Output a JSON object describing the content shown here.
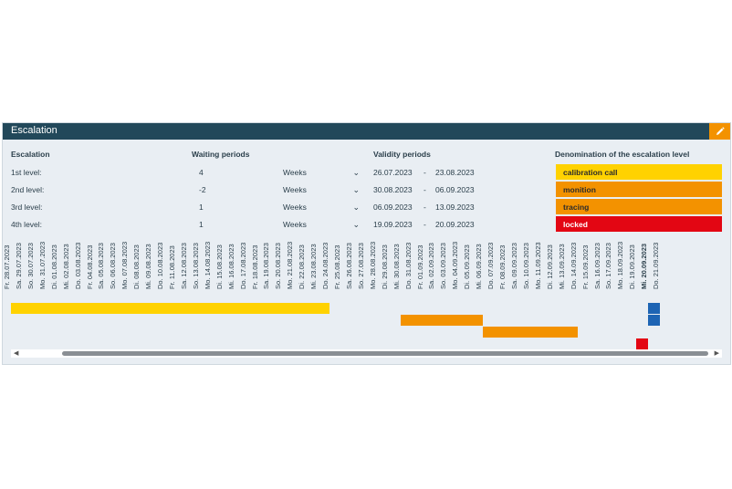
{
  "panel": {
    "title": "Escalation",
    "edit_icon": "pencil-icon"
  },
  "columns": {
    "escalation": "Escalation",
    "waiting": "Waiting periods",
    "validity": "Validity periods",
    "denomination": "Denomination of the escalation level"
  },
  "levels": [
    {
      "label": "1st level:",
      "waiting": "4",
      "unit": "Weeks",
      "from": "26.07.2023",
      "sep": "-",
      "to": "23.08.2023",
      "name": "calibration call",
      "color": "#ffd200",
      "text_color": "#2b2b2b"
    },
    {
      "label": "2nd level:",
      "waiting": "-2",
      "unit": "Weeks",
      "from": "30.08.2023",
      "sep": "-",
      "to": "06.09.2023",
      "name": "monition",
      "color": "#f39200",
      "text_color": "#2b2b2b"
    },
    {
      "label": "3rd level:",
      "waiting": "1",
      "unit": "Weeks",
      "from": "06.09.2023",
      "sep": "-",
      "to": "13.09.2023",
      "name": "tracing",
      "color": "#f39200",
      "text_color": "#2b2b2b"
    },
    {
      "label": "4th level:",
      "waiting": "1",
      "unit": "Weeks",
      "from": "19.09.2023",
      "sep": "-",
      "to": "20.09.2023",
      "name": "locked",
      "color": "#e30613",
      "text_color": "#ffffff"
    }
  ],
  "timeline": {
    "dates": [
      "Fr. 28.07.2023",
      "Sa. 29.07.2023",
      "So. 30.07.2023",
      "Mo. 31.07.2023",
      "Di. 01.08.2023",
      "Mi. 02.08.2023",
      "Do. 03.08.2023",
      "Fr. 04.08.2023",
      "Sa. 05.08.2023",
      "So. 06.08.2023",
      "Mo. 07.08.2023",
      "Di. 08.08.2023",
      "Mi. 09.08.2023",
      "Do. 10.08.2023",
      "Fr. 11.08.2023",
      "Sa. 12.08.2023",
      "So. 13.08.2023",
      "Mo. 14.08.2023",
      "Di. 15.08.2023",
      "Mi. 16.08.2023",
      "Do. 17.08.2023",
      "Fr. 18.08.2023",
      "Sa. 19.08.2023",
      "So. 20.08.2023",
      "Mo. 21.08.2023",
      "Di. 22.08.2023",
      "Mi. 23.08.2023",
      "Do. 24.08.2023",
      "Fr. 25.08.2023",
      "Sa. 26.08.2023",
      "So. 27.08.2023",
      "Mo. 28.08.2023",
      "Di. 29.08.2023",
      "Mi. 30.08.2023",
      "Do. 31.08.2023",
      "Fr. 01.09.2023",
      "Sa. 02.09.2023",
      "So. 03.09.2023",
      "Mo. 04.09.2023",
      "Di. 05.09.2023",
      "Mi. 06.09.2023",
      "Do. 07.09.2023",
      "Fr. 08.09.2023",
      "Sa. 09.09.2023",
      "So. 10.09.2023",
      "Mo. 11.09.2023",
      "Di. 12.09.2023",
      "Mi. 13.09.2023",
      "Do. 14.09.2023",
      "Fr. 15.09.2023",
      "Sa. 16.09.2023",
      "So. 17.09.2023",
      "Mo. 18.09.2023",
      "Di. 19.09.2023",
      "Mi. 20.09.2023",
      "Do. 21.09.2023"
    ],
    "today_index": 54,
    "bars": [
      {
        "name": "calibration-call-bar",
        "color": "#ffd200",
        "start_day": 0,
        "end_day": 27,
        "lane": 0
      },
      {
        "name": "monition-bar",
        "color": "#f39200",
        "start_day": 33,
        "end_day": 40,
        "lane": 1
      },
      {
        "name": "tracing-bar",
        "color": "#f39200",
        "start_day": 40,
        "end_day": 48,
        "lane": 2
      },
      {
        "name": "locked-bar",
        "color": "#e30613",
        "start_day": 53,
        "end_day": 54,
        "lane": 3
      },
      {
        "name": "today-upper-bar",
        "color": "#1d64b4",
        "start_day": 54,
        "end_day": 55,
        "lane": 0
      },
      {
        "name": "today-lower-bar",
        "color": "#1d64b4",
        "start_day": 54,
        "end_day": 55,
        "lane": 1
      }
    ]
  },
  "scroll": {
    "left": "◀",
    "right": "▶"
  }
}
